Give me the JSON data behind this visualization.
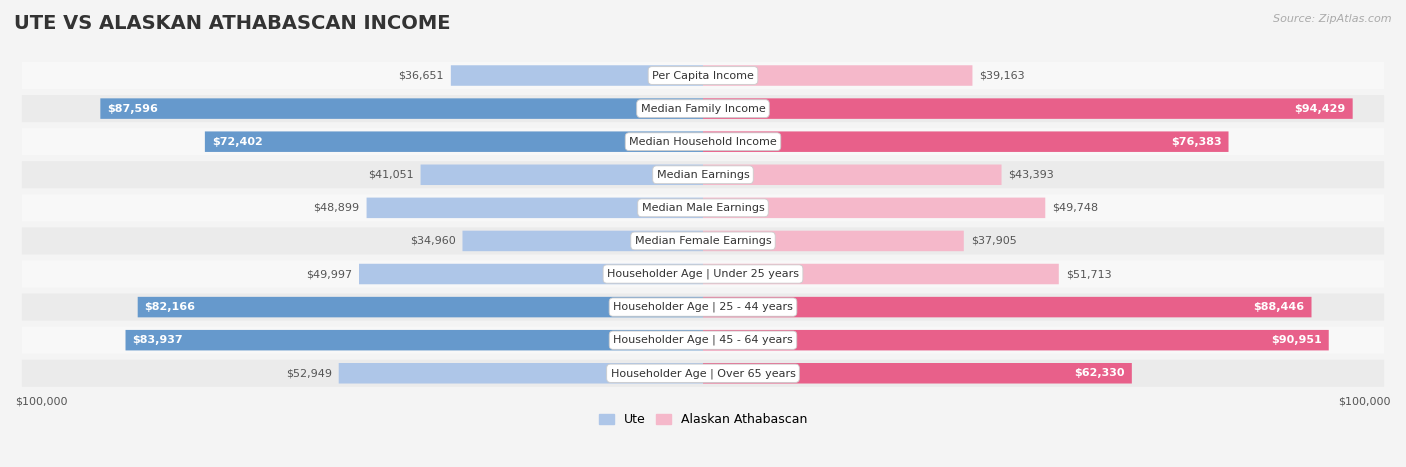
{
  "title": "UTE VS ALASKAN ATHABASCAN INCOME",
  "source": "Source: ZipAtlas.com",
  "categories": [
    "Per Capita Income",
    "Median Family Income",
    "Median Household Income",
    "Median Earnings",
    "Median Male Earnings",
    "Median Female Earnings",
    "Householder Age | Under 25 years",
    "Householder Age | 25 - 44 years",
    "Householder Age | 45 - 64 years",
    "Householder Age | Over 65 years"
  ],
  "ute_values": [
    36651,
    87596,
    72402,
    41051,
    48899,
    34960,
    49997,
    82166,
    83937,
    52949
  ],
  "alaska_values": [
    39163,
    94429,
    76383,
    43393,
    49748,
    37905,
    51713,
    88446,
    90951,
    62330
  ],
  "ute_labels": [
    "$36,651",
    "$87,596",
    "$72,402",
    "$41,051",
    "$48,899",
    "$34,960",
    "$49,997",
    "$82,166",
    "$83,937",
    "$52,949"
  ],
  "alaska_labels": [
    "$39,163",
    "$94,429",
    "$76,383",
    "$43,393",
    "$49,748",
    "$37,905",
    "$51,713",
    "$88,446",
    "$90,951",
    "$62,330"
  ],
  "max_value": 100000,
  "ute_color_light": "#aec6e8",
  "ute_color_dark": "#6699cc",
  "alaska_color_light": "#f5b8ca",
  "alaska_color_dark": "#e8608a",
  "bar_height": 0.62,
  "bg_color": "#f4f4f4",
  "row_bg_even": "#f8f8f8",
  "row_bg_odd": "#ebebeb",
  "xlabel_left": "$100,000",
  "xlabel_right": "$100,000",
  "legend_ute": "Ute",
  "legend_alaska": "Alaskan Athabascan",
  "large_threshold": 60000,
  "title_fontsize": 14,
  "label_fontsize": 8,
  "cat_fontsize": 8,
  "source_fontsize": 8
}
